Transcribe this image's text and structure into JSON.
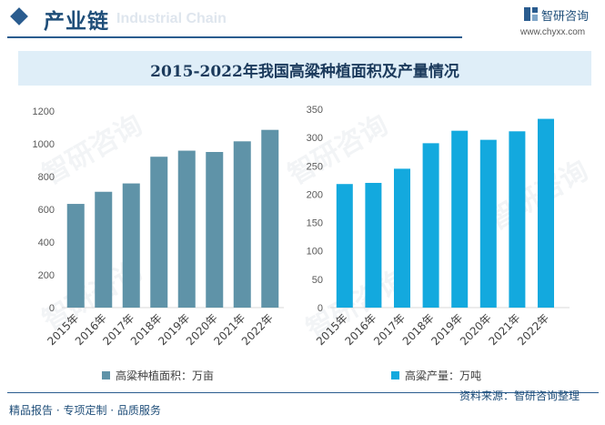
{
  "header": {
    "section_title": "产业链",
    "watermark_text": "Industrial Chain",
    "brand_name": "智研咨询",
    "brand_url": "www.chyxx.com"
  },
  "title": "2015-2022年我国高粱种植面积及产量情况",
  "watermark_text": "智研咨询",
  "colors": {
    "area": "#5f93a8",
    "production": "#13a9de",
    "accent": "#2a5c8f"
  },
  "chart_data": [
    {
      "type": "bar",
      "title": "2015-2022年我国高粱种植面积及产量情况",
      "categories": [
        "2015年",
        "2016年",
        "2017年",
        "2018年",
        "2019年",
        "2020年",
        "2021年",
        "2022年"
      ],
      "values": [
        633,
        707,
        758,
        921,
        958,
        950,
        1015,
        1085
      ],
      "series_name": "高粱种植面积：万亩",
      "yticks": [
        "0",
        "200",
        "400",
        "600",
        "800",
        "1000",
        "1200"
      ],
      "ylim": [
        0,
        1200
      ],
      "legend": "bottom"
    },
    {
      "type": "bar",
      "title": "2015-2022年我国高粱种植面积及产量情况",
      "categories": [
        "2015年",
        "2016年",
        "2017年",
        "2018年",
        "2019年",
        "2020年",
        "2021年",
        "2022年"
      ],
      "values": [
        218,
        220,
        245,
        290,
        312,
        296,
        311,
        333
      ],
      "series_name": "高粱产量：万吨",
      "yticks": [
        "0",
        "50",
        "100",
        "150",
        "200",
        "250",
        "300",
        "350"
      ],
      "ylim": [
        0,
        350
      ],
      "legend": "bottom"
    }
  ],
  "footer": {
    "left": "精品报告 · 专项定制 · 品质服务",
    "source": "资料来源：智研咨询整理"
  }
}
